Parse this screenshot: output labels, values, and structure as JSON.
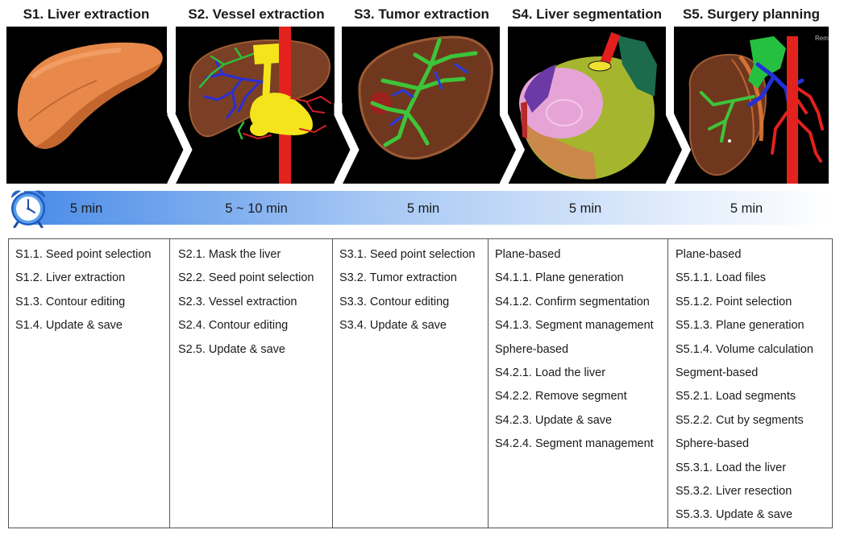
{
  "steps": [
    {
      "title": "S1. Liver extraction",
      "duration": "5 min",
      "items": [
        "S1.1. Seed point selection",
        "S1.2. Liver extraction",
        "S1.3. Contour editing",
        "S1.4. Update & save"
      ]
    },
    {
      "title": "S2. Vessel extraction",
      "duration": "5 ~ 10 min",
      "items": [
        "S2.1. Mask the liver",
        "S2.2. Seed point selection",
        "S2.3. Vessel extraction",
        "S2.4. Contour editing",
        "S2.5. Update & save"
      ]
    },
    {
      "title": "S3. Tumor extraction",
      "duration": "5 min",
      "items": [
        "S3.1. Seed point selection",
        "S3.2. Tumor extraction",
        "S3.3. Contour editing",
        "S3.4. Update & save"
      ]
    },
    {
      "title": "S4. Liver segmentation",
      "duration": "5 min",
      "items": [
        "Plane-based",
        "S4.1.1. Plane generation",
        "S4.1.2. Confirm segmentation",
        "S4.1.3. Segment management",
        "Sphere-based",
        "S4.2.1. Load the liver",
        "S4.2.2. Remove segment",
        "S4.2.3. Update & save",
        "S4.2.4. Segment management"
      ]
    },
    {
      "title": "S5. Surgery planning",
      "duration": "5 min",
      "items": [
        "Plane-based",
        "S5.1.1. Load files",
        "S5.1.2. Point selection",
        "S5.1.3. Plane generation",
        "S5.1.4. Volume calculation",
        "Segment-based",
        "S5.2.1. Load segments",
        "S5.2.2. Cut by segments",
        "Sphere-based",
        "S5.3.1. Load the liver",
        "S5.3.2. Liver resection",
        "S5.3.3. Update & save"
      ]
    }
  ],
  "panel5_overlay_text": "Rem",
  "icons": {
    "timeline_icon": "alarm-clock-icon",
    "step_separator": "chevron-right-icon"
  },
  "colors": {
    "timeline_start": "#4a8ce8",
    "timeline_mid": "#a9c9f4",
    "timeline_end": "#ffffff",
    "grid_lines": "#555555",
    "panel_background": "#000000"
  }
}
